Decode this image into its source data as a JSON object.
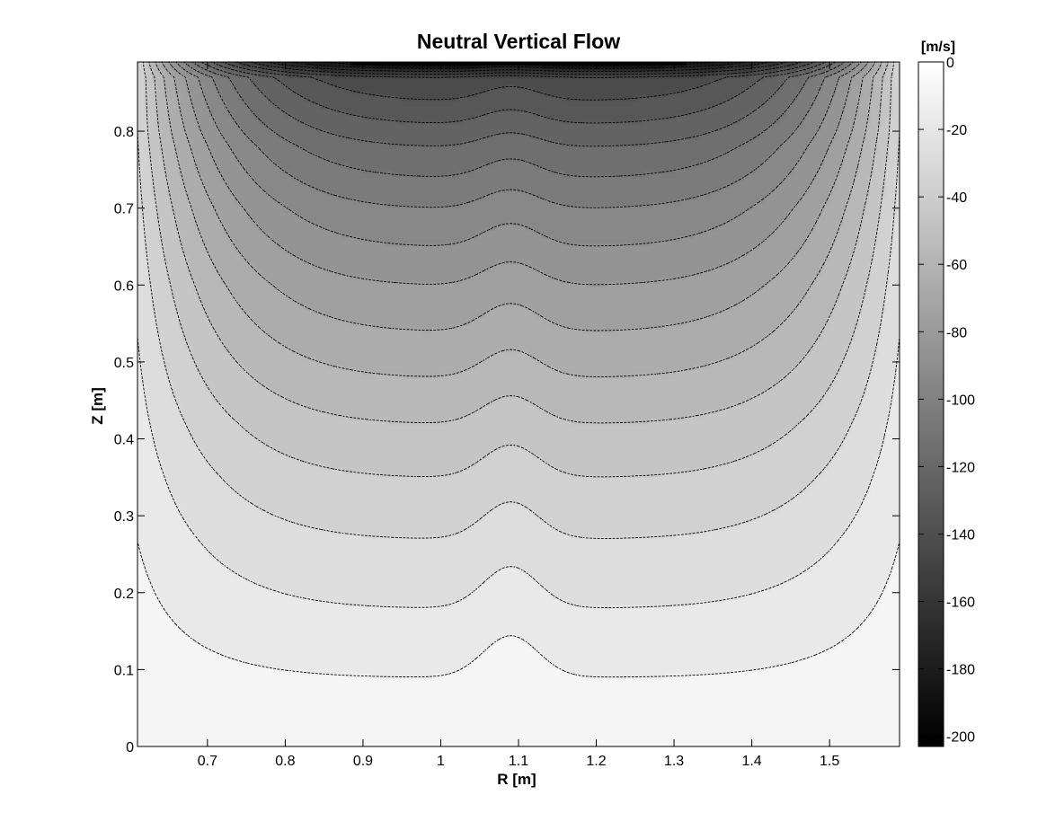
{
  "chart_data": {
    "type": "contour",
    "title": "Neutral Vertical Flow",
    "xlabel": "R [m]",
    "ylabel": "Z [m]",
    "xlim": [
      0.61,
      1.59
    ],
    "ylim": [
      0,
      0.89
    ],
    "xticks": [
      0.7,
      0.8,
      0.9,
      1,
      1.1,
      1.2,
      1.3,
      1.4,
      1.5
    ],
    "xtick_labels": [
      "0.7",
      "0.8",
      "0.9",
      "1",
      "1.1",
      "1.2",
      "1.3",
      "1.4",
      "1.5"
    ],
    "yticks": [
      0,
      0.1,
      0.2,
      0.3,
      0.4,
      0.5,
      0.6,
      0.7,
      0.8
    ],
    "ytick_labels": [
      "0",
      "0.1",
      "0.2",
      "0.3",
      "0.4",
      "0.5",
      "0.6",
      "0.7",
      "0.8"
    ],
    "grid": false,
    "colorbar": {
      "label": "[m/s]",
      "range": [
        -203,
        0
      ],
      "ticks": [
        0,
        -20,
        -40,
        -60,
        -80,
        -100,
        -120,
        -140,
        -160,
        -180,
        -200
      ],
      "tick_labels": [
        "0",
        "-20",
        "-40",
        "-60",
        "-80",
        "-100",
        "-120",
        "-140",
        "-160",
        "-180",
        "-200"
      ],
      "colormap": "gray"
    },
    "contour_levels": [
      -10,
      -20,
      -30,
      -40,
      -50,
      -60,
      -70,
      -80,
      -90,
      -100,
      -110,
      -120,
      -130,
      -140,
      -150,
      -160,
      -170,
      -180,
      -190
    ],
    "line_style": "dotted",
    "line_color": "#000000",
    "field_profile": {
      "R_center": 1.1,
      "value_at_center_Z": [
        [
          0,
          0
        ],
        [
          0.09,
          -10
        ],
        [
          0.18,
          -20
        ],
        [
          0.27,
          -30
        ],
        [
          0.35,
          -40
        ],
        [
          0.42,
          -50
        ],
        [
          0.48,
          -60
        ],
        [
          0.54,
          -70
        ],
        [
          0.6,
          -80
        ],
        [
          0.65,
          -90
        ],
        [
          0.7,
          -100
        ],
        [
          0.74,
          -110
        ],
        [
          0.78,
          -120
        ],
        [
          0.81,
          -130
        ],
        [
          0.84,
          -140
        ],
        [
          0.87,
          -150
        ],
        [
          0.89,
          -203
        ]
      ],
      "edge_min": -30
    }
  }
}
